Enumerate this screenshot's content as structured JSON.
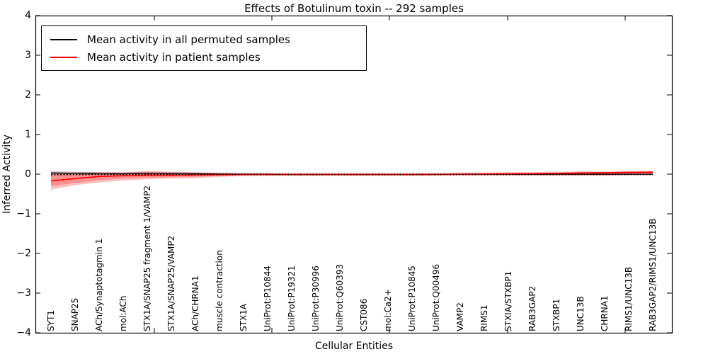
{
  "figure": {
    "title": "Effects of Botulinum toxin -- 292 samples",
    "xlabel": "Cellular Entities",
    "ylabel": "Inferred Activity"
  },
  "legend": {
    "items": [
      {
        "label": "Mean activity in all permuted samples",
        "color": "#000000"
      },
      {
        "label": "Mean activity in patient samples",
        "color": "#ff0000"
      }
    ]
  },
  "axes": {
    "ytick_labels": [
      "4",
      "3",
      "2",
      "1",
      "0",
      "−1",
      "−2",
      "−3",
      "−4"
    ],
    "ytick_values": [
      4,
      3,
      2,
      1,
      0,
      -1,
      -2,
      -3,
      -4
    ]
  },
  "chart_data": {
    "type": "line",
    "title": "Effects of Botulinum toxin -- 292 samples",
    "xlabel": "Cellular Entities",
    "ylabel": "Inferred Activity",
    "ylim": [
      -4,
      4
    ],
    "grid": false,
    "legend_position": "upper left",
    "categories": [
      "SYT1",
      "SNAP25",
      "ACh/Synaptotagmin 1",
      "mol:ACh",
      "STX1A/SNAP25 fragment 1/VAMP2",
      "STX1A/SNAP25/VAMP2",
      "ACh/CHRNA1",
      "muscle contraction",
      "STX1A",
      "UniProt:P10844",
      "UniProt:P19321",
      "UniProt:P30996",
      "UniProt:Q60393",
      "CST086",
      "mol:Ca2+",
      "UniProt:P10845",
      "UniProt:Q00496",
      "VAMP2",
      "RIMS1",
      "STXIA/STXBP1",
      "RAB3GAP2",
      "STXBP1",
      "UNC13B",
      "CHRNA1",
      "RIMS1/UNC13B",
      "RAB3GAP2/RIMS1/UNC13B"
    ],
    "series": [
      {
        "name": "Mean activity in all permuted samples",
        "color": "#000000",
        "style": "solid",
        "values": [
          0.03,
          0.02,
          0.015,
          0.01,
          0.025,
          0.015,
          0.01,
          0.005,
          0,
          0,
          -0.01,
          -0.01,
          -0.01,
          -0.01,
          -0.01,
          -0.01,
          -0.005,
          0,
          0,
          0,
          0,
          0,
          0,
          0,
          0,
          0
        ]
      },
      {
        "name": "Mean activity in patient samples",
        "color": "#ff0000",
        "style": "solid",
        "values": [
          -0.17,
          -0.11,
          -0.06,
          -0.04,
          -0.03,
          -0.025,
          -0.02,
          -0.015,
          -0.01,
          -0.01,
          -0.01,
          -0.01,
          -0.01,
          -0.01,
          -0.01,
          -0.01,
          -0.005,
          0,
          0.005,
          0.01,
          0.015,
          0.02,
          0.03,
          0.035,
          0.045,
          0.05
        ]
      }
    ],
    "bands": [
      {
        "name": "permuted-samples-band",
        "color": "rgba(110,110,110,0.35)",
        "upper": [
          0.08,
          0.06,
          0.05,
          0.04,
          0.06,
          0.05,
          0.04,
          0.03,
          0.02,
          0.02,
          0.02,
          0.02,
          0.02,
          0.02,
          0.02,
          0.02,
          0.02,
          0.02,
          0.02,
          0.02,
          0.02,
          0.02,
          0.02,
          0.02,
          0.02,
          0.02
        ],
        "lower": [
          -0.04,
          -0.03,
          -0.02,
          -0.02,
          -0.02,
          -0.02,
          -0.02,
          -0.02,
          -0.02,
          -0.03,
          -0.03,
          -0.03,
          -0.03,
          -0.03,
          -0.03,
          -0.03,
          -0.03,
          -0.02,
          -0.02,
          -0.02,
          -0.02,
          -0.02,
          -0.02,
          -0.02,
          -0.02,
          -0.02
        ]
      },
      {
        "name": "patient-samples-band-outer",
        "color": "rgba(255,0,0,0.25)",
        "upper": [
          0.05,
          0.05,
          0.05,
          0.05,
          0.08,
          0.06,
          0.05,
          0.04,
          0.03,
          0.03,
          0.03,
          0.03,
          0.03,
          0.03,
          0.03,
          0.03,
          0.03,
          0.04,
          0.04,
          0.05,
          0.05,
          0.06,
          0.07,
          0.07,
          0.08,
          0.09
        ],
        "lower": [
          -0.39,
          -0.28,
          -0.21,
          -0.16,
          -0.13,
          -0.11,
          -0.1,
          -0.07,
          -0.05,
          -0.04,
          -0.04,
          -0.04,
          -0.04,
          -0.04,
          -0.04,
          -0.04,
          -0.04,
          -0.04,
          -0.04,
          -0.04,
          -0.04,
          -0.04,
          -0.04,
          -0.04,
          -0.03,
          -0.03
        ],
        "lower_label_note": ""
      },
      {
        "name": "patient-samples-band-inner",
        "color": "rgba(255,0,0,0.25)",
        "upper": [
          -0.02,
          -0.01,
          0,
          0,
          0.02,
          0.01,
          0.01,
          0.01,
          0.01,
          0.01,
          0.01,
          0.01,
          0.01,
          0.01,
          0.01,
          0.01,
          0.01,
          0.02,
          0.02,
          0.03,
          0.03,
          0.04,
          0.05,
          0.05,
          0.06,
          0.07
        ],
        "lower": [
          -0.3,
          -0.22,
          -0.15,
          -0.11,
          -0.09,
          -0.08,
          -0.07,
          -0.05,
          -0.03,
          -0.03,
          -0.03,
          -0.03,
          -0.03,
          -0.03,
          -0.03,
          -0.03,
          -0.03,
          -0.02,
          -0.02,
          -0.02,
          -0.02,
          -0.02,
          -0.02,
          -0.02,
          -0.01,
          -0.01
        ]
      }
    ],
    "zero_line": {
      "y": 0,
      "style": "dotted",
      "color": "#000000"
    }
  }
}
